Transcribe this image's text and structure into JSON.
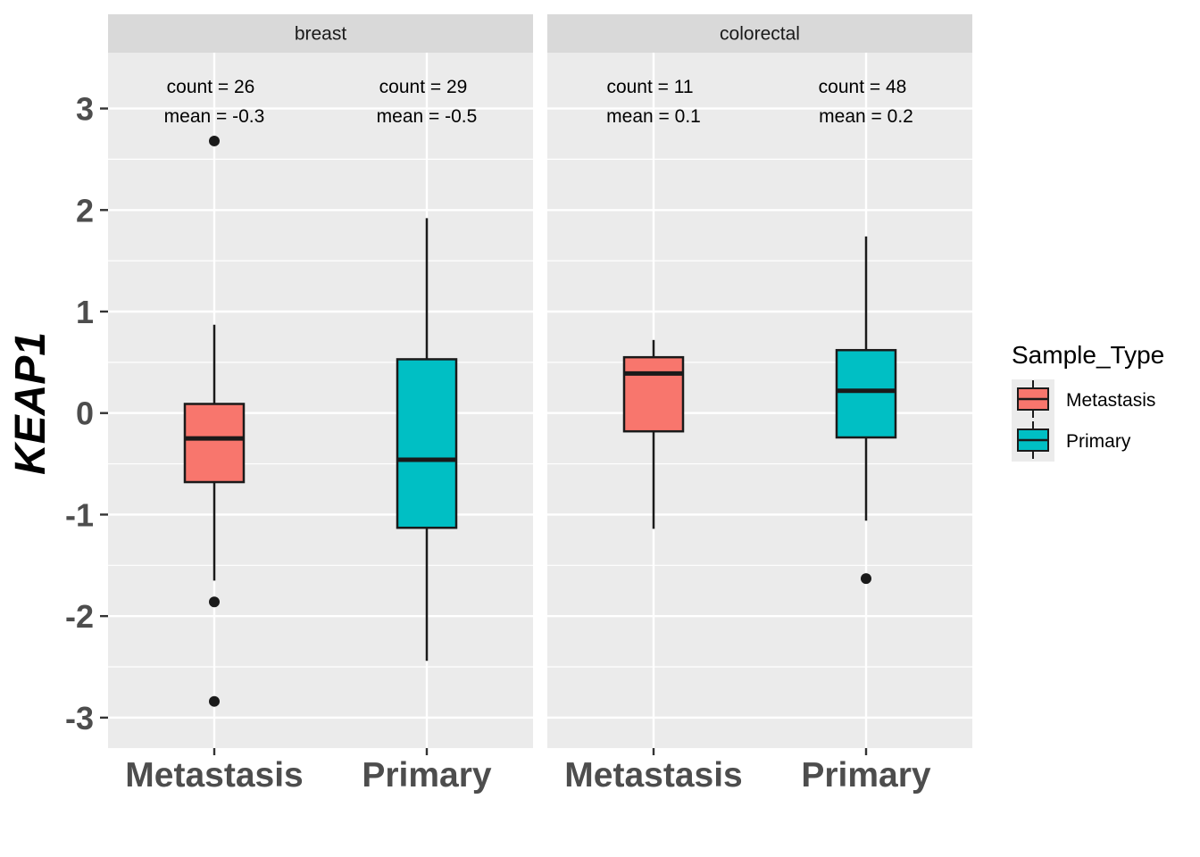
{
  "chart_data": {
    "type": "boxplot",
    "ylabel": "KEAP1",
    "ylim": [
      -3.3,
      3.55
    ],
    "yticks": [
      3,
      2,
      1,
      0,
      -1,
      -2,
      -3
    ],
    "ytick_labels": [
      "3",
      "2",
      "1",
      "0",
      "-1",
      "-2",
      "-3"
    ],
    "categories": [
      "Metastasis",
      "Primary"
    ],
    "grid": true,
    "legend": {
      "title": "Sample_Type",
      "position": "right",
      "entries": [
        {
          "label": "Metastasis",
          "color": "#F8766D"
        },
        {
          "label": "Primary",
          "color": "#00BFC4"
        }
      ]
    },
    "facets": [
      {
        "label": "breast",
        "boxes": [
          {
            "category": "Metastasis",
            "color": "#F8766D",
            "whisker_low": -1.65,
            "q1": -0.68,
            "median": -0.25,
            "q3": 0.09,
            "whisker_high": 0.87,
            "outliers": [
              2.68,
              -1.86,
              -2.84
            ],
            "count_text": "count = 26",
            "mean_text": "mean = -0.3"
          },
          {
            "category": "Primary",
            "color": "#00BFC4",
            "whisker_low": -2.44,
            "q1": -1.13,
            "median": -0.46,
            "q3": 0.53,
            "whisker_high": 1.92,
            "outliers": [],
            "count_text": "count = 29",
            "mean_text": "mean = -0.5"
          }
        ]
      },
      {
        "label": "colorectal",
        "boxes": [
          {
            "category": "Metastasis",
            "color": "#F8766D",
            "whisker_low": -1.14,
            "q1": -0.18,
            "median": 0.39,
            "q3": 0.55,
            "whisker_high": 0.72,
            "outliers": [],
            "count_text": "count = 11",
            "mean_text": "mean = 0.1"
          },
          {
            "category": "Primary",
            "color": "#00BFC4",
            "whisker_low": -1.06,
            "q1": -0.24,
            "median": 0.22,
            "q3": 0.62,
            "whisker_high": 1.74,
            "outliers": [
              -1.63
            ],
            "count_text": "count = 48",
            "mean_text": "mean = 0.2"
          }
        ]
      }
    ]
  }
}
